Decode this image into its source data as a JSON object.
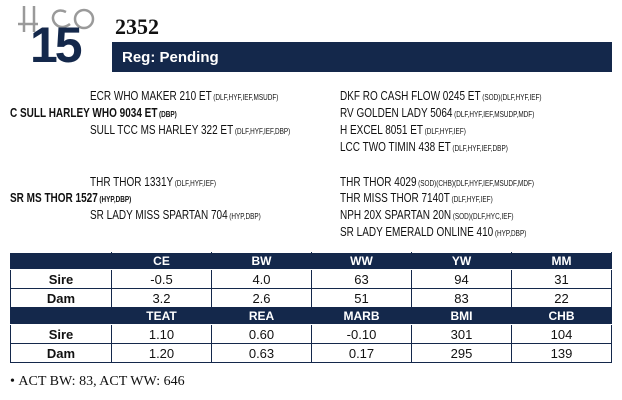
{
  "lot": {
    "number": "15",
    "registration_number": "2352",
    "status": "Reg: Pending"
  },
  "pedigree": {
    "sire_side": [
      {
        "name": "ECR WHO MAKER 210 ET",
        "tags": "(DLF,HYF,IEF,MSUDF)"
      },
      {
        "name": "C SULL HARLEY WHO 9034 ET",
        "tags": "(DBP)"
      },
      {
        "name": "SULL TCC MS HARLEY 322 ET",
        "tags": "(DLF,HYF,IEF,DBP)"
      },
      {
        "name": "DKF RO CASH FLOW 0245 ET",
        "tags": "(SOD)(DLF,HYF,IEF)"
      },
      {
        "name": "RV GOLDEN LADY 5064",
        "tags": "(DLF,HYF,IEF,MSUDP,MDF)"
      },
      {
        "name": "H EXCEL 8051 ET",
        "tags": "(DLF,HYF,IEF)"
      },
      {
        "name": "LCC TWO TIMIN 438 ET",
        "tags": "(DLF,HYF,IEF,DBP)"
      }
    ],
    "dam_side": [
      {
        "name": "THR THOR 1331Y",
        "tags": "(DLF,HYF,IEF)"
      },
      {
        "name": "SR MS THOR 1527",
        "tags": "(HYP,DBP)"
      },
      {
        "name": "SR LADY MISS SPARTAN 704",
        "tags": "(HYP,DBP)"
      },
      {
        "name": "THR THOR 4029",
        "tags": "(SOD)(CHB)(DLF,HYF,IEF,MSUDF,MDF)"
      },
      {
        "name": "THR MISS THOR 7140T",
        "tags": "(DLF,HYF,IEF)"
      },
      {
        "name": "NPH 20X SPARTAN 20N",
        "tags": "(SOD)(DLF,HYC,IEF)"
      },
      {
        "name": "SR LADY EMERALD ONLINE 410",
        "tags": "(HYP,DBP)"
      }
    ]
  },
  "epd_table": {
    "sections": [
      {
        "headers": [
          "CE",
          "BW",
          "WW",
          "YW",
          "MM"
        ],
        "rows": [
          {
            "label": "Sire",
            "values": [
              "-0.5",
              "4.0",
              "63",
              "94",
              "31"
            ]
          },
          {
            "label": "Dam",
            "values": [
              "3.2",
              "2.6",
              "51",
              "83",
              "22"
            ]
          }
        ]
      },
      {
        "headers": [
          "TEAT",
          "REA",
          "MARB",
          "BMI",
          "CHB"
        ],
        "rows": [
          {
            "label": "Sire",
            "values": [
              "1.10",
              "0.60",
              "-0.10",
              "301",
              "104"
            ]
          },
          {
            "label": "Dam",
            "values": [
              "1.20",
              "0.63",
              "0.17",
              "295",
              "139"
            ]
          }
        ]
      }
    ]
  },
  "notes": [
    "ACT BW: 83, ACT WW: 646"
  ]
}
